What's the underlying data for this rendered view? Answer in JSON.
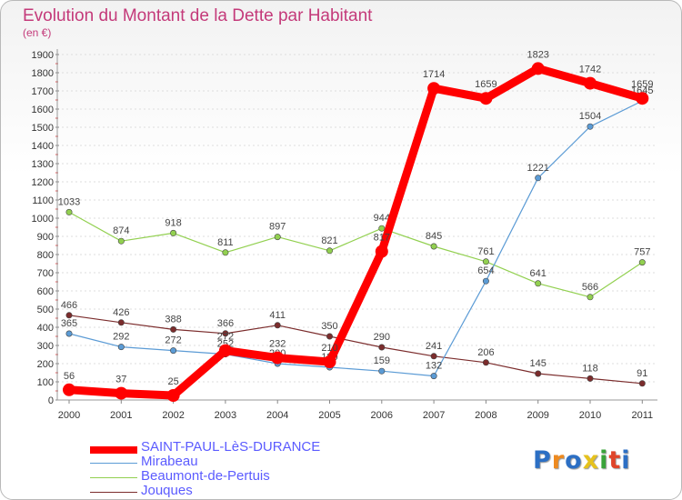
{
  "title": "Evolution du Montant de la Dette par Habitant",
  "subtitle": "(en €)",
  "chart_data": {
    "type": "line",
    "x": [
      "2000",
      "2001",
      "2002",
      "2003",
      "2004",
      "2005",
      "2006",
      "2007",
      "2008",
      "2009",
      "2010",
      "2011"
    ],
    "ylim": [
      0,
      1900
    ],
    "yticks": [
      0,
      100,
      200,
      300,
      400,
      500,
      600,
      700,
      800,
      900,
      1000,
      1100,
      1200,
      1300,
      1400,
      1500,
      1600,
      1700,
      1800,
      1900
    ],
    "grid": true,
    "legend_position": "bottom-left",
    "series": [
      {
        "name": "SAINT-PAUL-LèS-DURANCE",
        "color": "#ff0000",
        "values": [
          56,
          37,
          25,
          272,
          232,
          210,
          817,
          1714,
          1659,
          1823,
          1742,
          1659
        ]
      },
      {
        "name": "Mirabeau",
        "color": "#5b9bd5",
        "values": [
          365,
          292,
          272,
          252,
          200,
          180,
          159,
          132,
          654,
          1221,
          1504,
          1645
        ]
      },
      {
        "name": "Beaumont-de-Pertuis",
        "color": "#92d050",
        "values": [
          1033,
          874,
          918,
          811,
          897,
          821,
          944,
          845,
          761,
          641,
          566,
          757
        ]
      },
      {
        "name": "Jouques",
        "color": "#7b2c2c",
        "values": [
          466,
          426,
          388,
          366,
          411,
          350,
          290,
          241,
          206,
          145,
          118,
          91
        ]
      }
    ]
  },
  "logo": {
    "letters": [
      "P",
      "r",
      "o",
      "x",
      "i",
      "t",
      "i"
    ],
    "colors": [
      "#2c6fc4",
      "#ee8a1f",
      "#2c6fc4",
      "#e6c21d",
      "#3aa33a",
      "#e0452a",
      "#2c6fc4"
    ]
  }
}
